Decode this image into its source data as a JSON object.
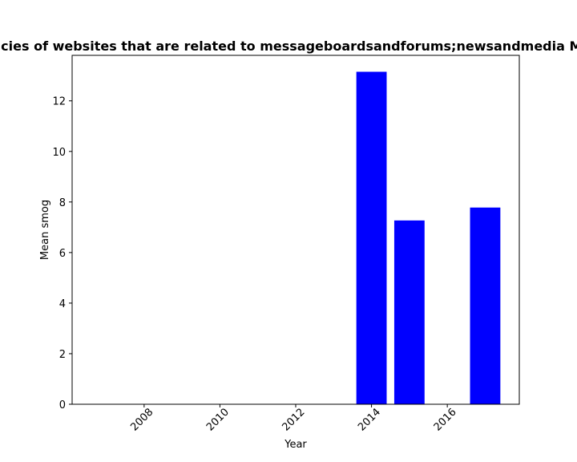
{
  "chart_data": {
    "type": "bar",
    "title": "Mean smog for privacy policies of websites that are related to messageboardsandforums;newsandmedia Mean smog in privacy policies",
    "xlabel": "Year",
    "ylabel": "Mean smog",
    "categories": [
      2014,
      2015,
      2017
    ],
    "values": [
      13.15,
      7.27,
      7.78
    ],
    "xlim": [
      2006.1,
      2017.9
    ],
    "ylim": [
      0,
      13.8
    ],
    "xticks": [
      2008,
      2010,
      2012,
      2014,
      2016
    ],
    "xtick_labels": [
      "2008",
      "2010",
      "2012",
      "2014",
      "2016"
    ],
    "yticks": [
      0,
      2,
      4,
      6,
      8,
      10,
      12
    ],
    "ytick_labels": [
      "0",
      "2",
      "4",
      "6",
      "8",
      "10",
      "12"
    ],
    "bar_color": "#0000ff",
    "grid": false,
    "legend": "none"
  }
}
